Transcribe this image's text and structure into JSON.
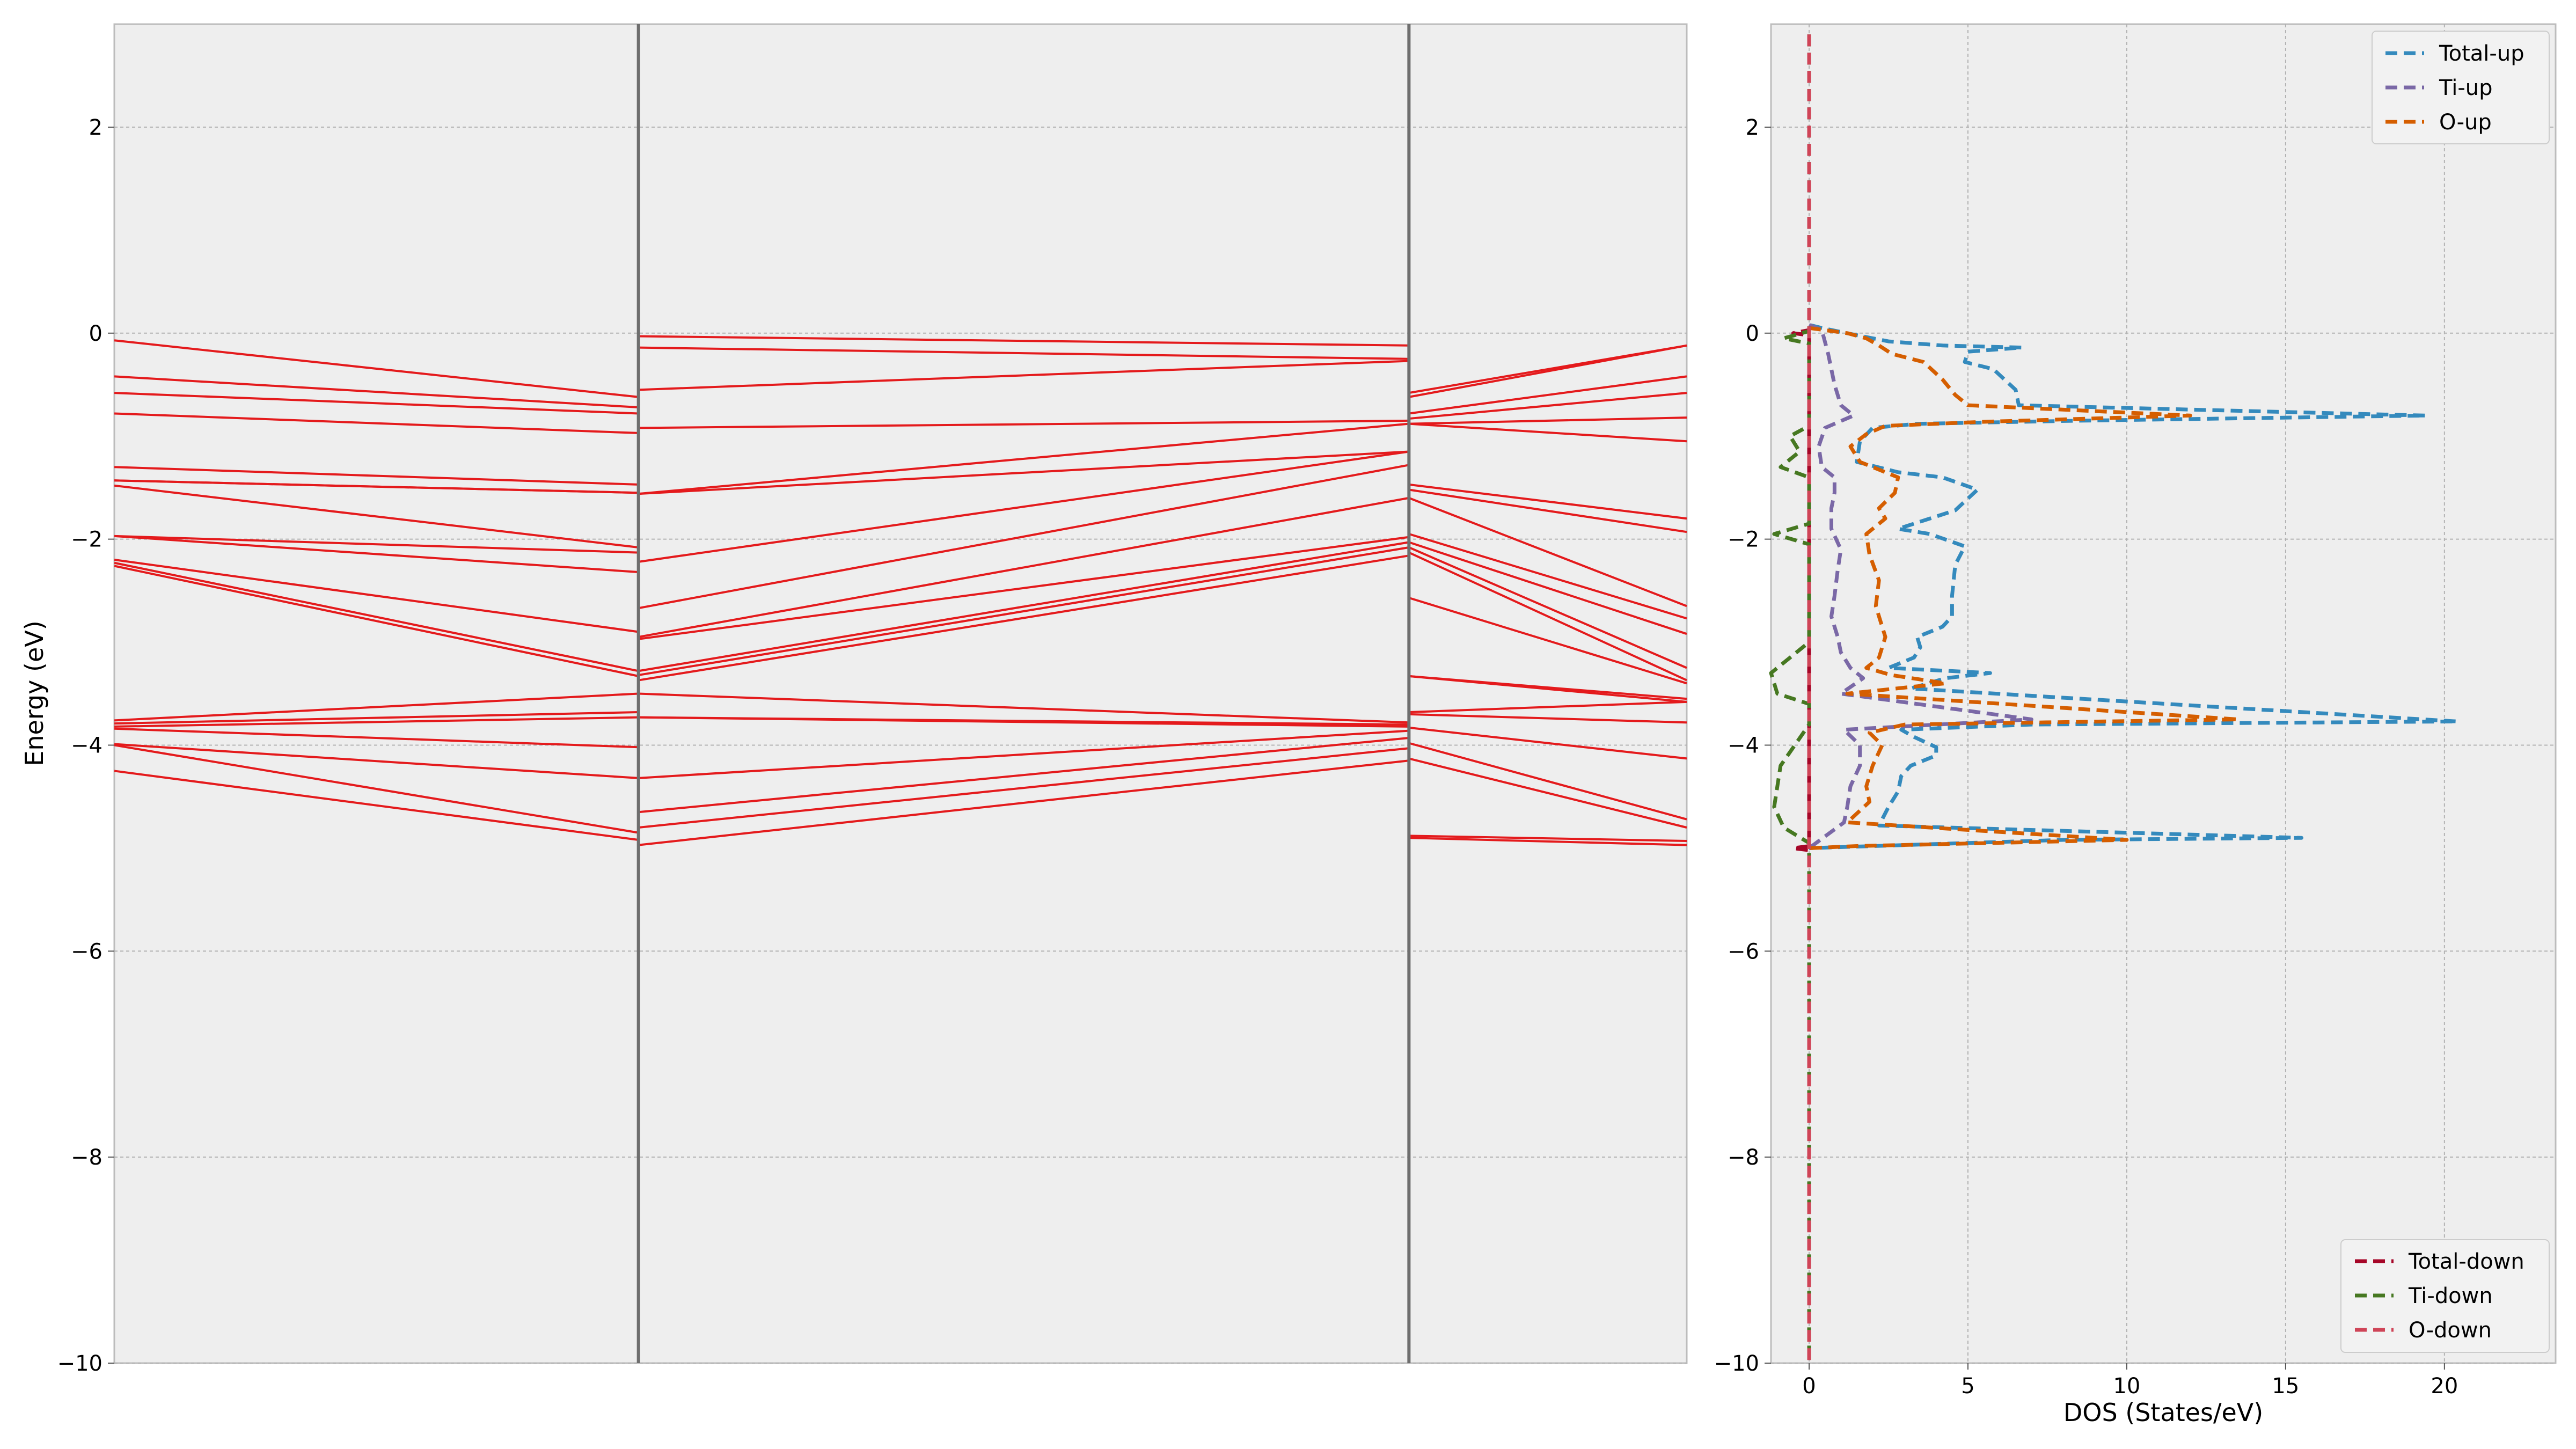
{
  "chart_data": [
    {
      "type": "line",
      "ylabel": "Energy (eV)",
      "xlabel": "",
      "ylim": [
        -10,
        3
      ],
      "yticks": [
        -10,
        -8,
        -6,
        -4,
        -2,
        0,
        2
      ],
      "ytick_labels": [
        "−10",
        "−8",
        "−6",
        "−4",
        "−2",
        "0",
        "2"
      ],
      "xlim": [
        0,
        3
      ],
      "kpoint_boundaries": [
        1,
        2.47
      ],
      "grid": true,
      "band_color": "#e41a1c",
      "segments": [
        {
          "x": [
            0,
            1
          ],
          "bands": [
            [
              -0.07,
              -0.62
            ],
            [
              -0.42,
              -0.72
            ],
            [
              -0.58,
              -0.78
            ],
            [
              -0.78,
              -0.97
            ],
            [
              -1.3,
              -1.47
            ],
            [
              -1.43,
              -1.55
            ],
            [
              -1.43,
              -1.55
            ],
            [
              -1.48,
              -2.08
            ],
            [
              -1.97,
              -2.13
            ],
            [
              -1.97,
              -2.32
            ],
            [
              -2.2,
              -2.9
            ],
            [
              -2.23,
              -3.28
            ],
            [
              -2.26,
              -3.33
            ],
            [
              -3.76,
              -3.5
            ],
            [
              -3.79,
              -3.68
            ],
            [
              -3.82,
              -3.73
            ],
            [
              -3.84,
              -4.02
            ],
            [
              -3.99,
              -4.32
            ],
            [
              -4.0,
              -4.85
            ],
            [
              -4.25,
              -4.92
            ]
          ]
        },
        {
          "x": [
            1,
            2.47
          ],
          "bands": [
            [
              -0.03,
              -0.12
            ],
            [
              -0.14,
              -0.25
            ],
            [
              -0.55,
              -0.27
            ],
            [
              -0.92,
              -0.85
            ],
            [
              -1.56,
              -0.88
            ],
            [
              -1.56,
              -1.15
            ],
            [
              -2.22,
              -1.15
            ],
            [
              -2.67,
              -1.28
            ],
            [
              -2.95,
              -1.6
            ],
            [
              -2.97,
              -1.98
            ],
            [
              -3.28,
              -2.03
            ],
            [
              -3.32,
              -2.08
            ],
            [
              -3.37,
              -2.16
            ],
            [
              -3.5,
              -3.78
            ],
            [
              -3.73,
              -3.8
            ],
            [
              -3.73,
              -3.82
            ],
            [
              -4.32,
              -3.86
            ],
            [
              -4.65,
              -3.93
            ],
            [
              -4.8,
              -4.03
            ],
            [
              -4.97,
              -4.15
            ]
          ]
        },
        {
          "x": [
            2.47,
            3
          ],
          "bands": [
            [
              -0.58,
              -0.12
            ],
            [
              -0.62,
              -0.12
            ],
            [
              -0.78,
              -0.42
            ],
            [
              -0.83,
              -0.58
            ],
            [
              -0.88,
              -0.82
            ],
            [
              -0.88,
              -1.05
            ],
            [
              -1.47,
              -1.8
            ],
            [
              -1.52,
              -1.93
            ],
            [
              -1.6,
              -2.65
            ],
            [
              -1.95,
              -2.77
            ],
            [
              -2.03,
              -2.92
            ],
            [
              -2.08,
              -3.25
            ],
            [
              -2.13,
              -3.37
            ],
            [
              -2.57,
              -3.4
            ],
            [
              -3.33,
              -3.55
            ],
            [
              -3.33,
              -3.58
            ],
            [
              -3.68,
              -3.58
            ],
            [
              -3.7,
              -3.78
            ],
            [
              -3.83,
              -4.13
            ],
            [
              -3.98,
              -4.72
            ],
            [
              -4.13,
              -4.8
            ],
            [
              -4.88,
              -4.93
            ],
            [
              -4.9,
              -4.97
            ]
          ]
        }
      ]
    },
    {
      "type": "line",
      "xlabel": "DOS (States/eV)",
      "ylabel": "",
      "xlim": [
        -1.2,
        23.5
      ],
      "ylim": [
        -10,
        3
      ],
      "xticks": [
        0,
        5,
        10,
        15,
        20
      ],
      "xtick_labels": [
        "0",
        "5",
        "10",
        "15",
        "20"
      ],
      "yticks": [
        -10,
        -8,
        -6,
        -4,
        -2,
        0,
        2
      ],
      "ytick_labels": [
        "−10",
        "−8",
        "−6",
        "−4",
        "−2",
        "0",
        "2"
      ],
      "grid": true,
      "legend_upper": {
        "placement": "top-right",
        "entries": [
          "Total-up",
          "Ti-up",
          "O-up"
        ]
      },
      "legend_lower": {
        "placement": "bottom-right",
        "entries": [
          "Total-down",
          "Ti-down",
          "O-down"
        ]
      },
      "series": [
        {
          "name": "Total-up",
          "color": "#348abd",
          "points": [
            [
              0,
              2.9
            ],
            [
              0,
              0.08
            ],
            [
              0.4,
              0.05
            ],
            [
              1.5,
              -0.02
            ],
            [
              2.5,
              -0.08
            ],
            [
              4.2,
              -0.12
            ],
            [
              6.7,
              -0.14
            ],
            [
              5.0,
              -0.18
            ],
            [
              4.9,
              -0.28
            ],
            [
              5.8,
              -0.35
            ],
            [
              6.5,
              -0.55
            ],
            [
              6.6,
              -0.7
            ],
            [
              19.4,
              -0.8
            ],
            [
              8.5,
              -0.85
            ],
            [
              3.4,
              -0.88
            ],
            [
              2.0,
              -0.92
            ],
            [
              1.6,
              -1.05
            ],
            [
              1.5,
              -1.25
            ],
            [
              2.8,
              -1.35
            ],
            [
              4.2,
              -1.4
            ],
            [
              5.3,
              -1.52
            ],
            [
              4.6,
              -1.72
            ],
            [
              2.8,
              -1.9
            ],
            [
              3.8,
              -1.95
            ],
            [
              4.9,
              -2.07
            ],
            [
              4.6,
              -2.25
            ],
            [
              4.5,
              -2.55
            ],
            [
              4.5,
              -2.75
            ],
            [
              4.2,
              -2.85
            ],
            [
              3.4,
              -2.95
            ],
            [
              3.5,
              -3.05
            ],
            [
              3.3,
              -3.15
            ],
            [
              2.5,
              -3.25
            ],
            [
              5.7,
              -3.3
            ],
            [
              4.3,
              -3.35
            ],
            [
              3.2,
              -3.45
            ],
            [
              20.4,
              -3.77
            ],
            [
              7.0,
              -3.8
            ],
            [
              2.9,
              -3.85
            ],
            [
              3.3,
              -3.92
            ],
            [
              4.0,
              -4.02
            ],
            [
              4.0,
              -4.1
            ],
            [
              3.2,
              -4.2
            ],
            [
              2.9,
              -4.3
            ],
            [
              2.8,
              -4.45
            ],
            [
              2.5,
              -4.6
            ],
            [
              2.2,
              -4.78
            ],
            [
              15.5,
              -4.9
            ],
            [
              8.0,
              -4.92
            ],
            [
              0,
              -5.0
            ]
          ]
        },
        {
          "name": "Ti-up",
          "color": "#7a68a6",
          "points": [
            [
              0,
              0.08
            ],
            [
              0.4,
              0.03
            ],
            [
              0.6,
              -0.2
            ],
            [
              0.8,
              -0.5
            ],
            [
              1.0,
              -0.7
            ],
            [
              1.4,
              -0.8
            ],
            [
              0.5,
              -0.92
            ],
            [
              0.3,
              -1.1
            ],
            [
              0.4,
              -1.3
            ],
            [
              0.8,
              -1.4
            ],
            [
              0.8,
              -1.55
            ],
            [
              0.7,
              -1.7
            ],
            [
              0.7,
              -1.9
            ],
            [
              1.0,
              -2.1
            ],
            [
              0.9,
              -2.3
            ],
            [
              0.8,
              -2.55
            ],
            [
              0.7,
              -2.75
            ],
            [
              0.9,
              -2.95
            ],
            [
              1.0,
              -3.1
            ],
            [
              1.3,
              -3.25
            ],
            [
              1.7,
              -3.35
            ],
            [
              1.0,
              -3.5
            ],
            [
              7.0,
              -3.75
            ],
            [
              1.1,
              -3.85
            ],
            [
              1.6,
              -4.0
            ],
            [
              1.6,
              -4.2
            ],
            [
              1.3,
              -4.4
            ],
            [
              1.2,
              -4.6
            ],
            [
              1.1,
              -4.75
            ],
            [
              0,
              -5.0
            ]
          ]
        },
        {
          "name": "O-up",
          "color": "#d55e00",
          "points": [
            [
              0,
              0.05
            ],
            [
              1.2,
              0.0
            ],
            [
              1.8,
              -0.05
            ],
            [
              2.2,
              -0.12
            ],
            [
              2.6,
              -0.2
            ],
            [
              3.6,
              -0.28
            ],
            [
              4.2,
              -0.45
            ],
            [
              4.6,
              -0.6
            ],
            [
              5.0,
              -0.7
            ],
            [
              12.0,
              -0.8
            ],
            [
              5.6,
              -0.86
            ],
            [
              2.4,
              -0.9
            ],
            [
              1.8,
              -0.98
            ],
            [
              1.3,
              -1.1
            ],
            [
              1.6,
              -1.25
            ],
            [
              2.8,
              -1.4
            ],
            [
              2.7,
              -1.55
            ],
            [
              2.2,
              -1.7
            ],
            [
              2.4,
              -1.8
            ],
            [
              1.8,
              -1.95
            ],
            [
              1.9,
              -2.15
            ],
            [
              2.2,
              -2.4
            ],
            [
              2.1,
              -2.65
            ],
            [
              2.4,
              -2.95
            ],
            [
              2.2,
              -3.15
            ],
            [
              1.8,
              -3.25
            ],
            [
              2.6,
              -3.32
            ],
            [
              4.3,
              -3.4
            ],
            [
              1.2,
              -3.5
            ],
            [
              13.5,
              -3.75
            ],
            [
              3.0,
              -3.8
            ],
            [
              1.9,
              -3.88
            ],
            [
              2.3,
              -4.0
            ],
            [
              2.0,
              -4.2
            ],
            [
              1.8,
              -4.4
            ],
            [
              1.9,
              -4.55
            ],
            [
              1.2,
              -4.75
            ],
            [
              10.0,
              -4.92
            ],
            [
              1.5,
              -4.98
            ],
            [
              0,
              -5.0
            ]
          ]
        },
        {
          "name": "Total-down",
          "color": "#a60628",
          "points": [
            [
              0,
              2.9
            ],
            [
              0,
              0.03
            ],
            [
              -0.5,
              0.0
            ],
            [
              0,
              -0.02
            ],
            [
              0,
              -4.98
            ],
            [
              -0.5,
              -5.0
            ],
            [
              0,
              -5.02
            ],
            [
              0,
              -10
            ]
          ]
        },
        {
          "name": "Ti-down",
          "color": "#467821",
          "points": [
            [
              0,
              2.9
            ],
            [
              0,
              0.02
            ],
            [
              -0.8,
              -0.05
            ],
            [
              0,
              -0.1
            ],
            [
              0,
              -0.9
            ],
            [
              -0.6,
              -1.0
            ],
            [
              -0.3,
              -1.15
            ],
            [
              -0.9,
              -1.3
            ],
            [
              0,
              -1.4
            ],
            [
              0,
              -1.85
            ],
            [
              -1.1,
              -1.95
            ],
            [
              0,
              -2.05
            ],
            [
              0,
              -3.0
            ],
            [
              -1.2,
              -3.3
            ],
            [
              -1.0,
              -3.5
            ],
            [
              0,
              -3.6
            ],
            [
              0,
              -3.8
            ],
            [
              -0.9,
              -4.2
            ],
            [
              -1.1,
              -4.6
            ],
            [
              -0.8,
              -4.8
            ],
            [
              0,
              -4.95
            ],
            [
              0,
              -10
            ]
          ]
        },
        {
          "name": "O-down",
          "color": "#cf4457",
          "points": [
            [
              0,
              2.9
            ],
            [
              0,
              -10
            ]
          ]
        }
      ]
    }
  ]
}
